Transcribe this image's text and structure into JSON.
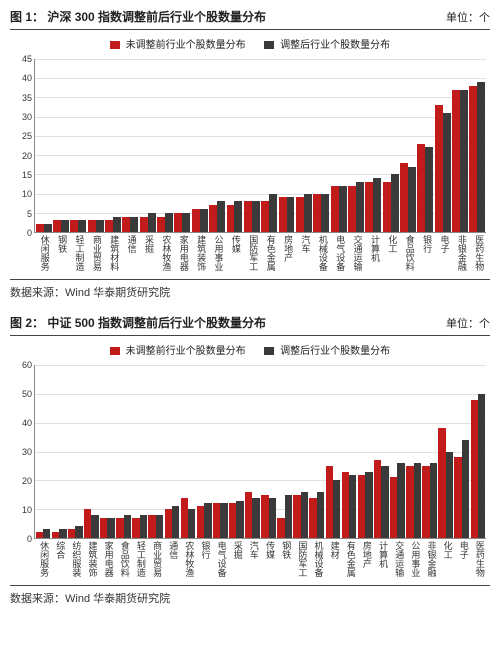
{
  "colors": {
    "series_before": "#c11b1b",
    "series_after": "#3a3a3a",
    "grid": "#e0e0e0",
    "axis": "#888888",
    "text": "#222222",
    "background": "#ffffff"
  },
  "legend_labels": {
    "before": "未调整前行业个股数量分布",
    "after": "调整后行业个股数量分布"
  },
  "figures": [
    {
      "id": "fig1",
      "title_prefix": "图 1：",
      "title": "沪深 300 指数调整前后行业个股数量分布",
      "unit": "单位：个",
      "source": "数据来源：Wind  华泰期货研究院",
      "ylim": [
        0,
        45
      ],
      "ytick_step": 5,
      "type": "bar",
      "categories": [
        "休闲服务",
        "钢铁",
        "轻工制造",
        "商业贸易",
        "建筑材料",
        "通信",
        "采掘",
        "农林牧渔",
        "家用电器",
        "建筑装饰",
        "公用事业",
        "传媒",
        "国防军工",
        "有色金属",
        "房地产",
        "汽车",
        "机械设备",
        "电气设备",
        "交通运输",
        "计算机",
        "化工",
        "食品饮料",
        "银行",
        "电子",
        "非银金融",
        "医药生物"
      ],
      "values_before": [
        2,
        3,
        3,
        3,
        3,
        4,
        4,
        4,
        5,
        6,
        7,
        7,
        8,
        8,
        9,
        9,
        10,
        12,
        12,
        13,
        13,
        18,
        23,
        33,
        37,
        38
      ],
      "values_after": [
        2,
        3,
        3,
        3,
        4,
        4,
        5,
        5,
        5,
        6,
        8,
        8,
        8,
        10,
        9,
        10,
        10,
        12,
        13,
        14,
        15,
        17,
        22,
        31,
        37,
        39
      ]
    },
    {
      "id": "fig2",
      "title_prefix": "图 2：",
      "title": "中证 500 指数调整前后行业个股数量分布",
      "unit": "单位：个",
      "source": "数据来源：Wind  华泰期货研究院",
      "ylim": [
        0,
        60
      ],
      "ytick_step": 10,
      "type": "bar",
      "categories": [
        "休闲服务",
        "综合",
        "纺织服装",
        "建筑装饰",
        "家用电器",
        "食品饮料",
        "轻工制造",
        "商业贸易",
        "通信",
        "农林牧渔",
        "银行",
        "电气设备",
        "采掘",
        "汽车",
        "传媒",
        "钢铁",
        "国防军工",
        "机械设备",
        "建材",
        "有色金属",
        "房地产",
        "计算机",
        "交通运输",
        "公用事业",
        "非银金融",
        "化工",
        "电子",
        "医药生物"
      ],
      "values_before": [
        2,
        2,
        3,
        10,
        7,
        7,
        7,
        8,
        10,
        14,
        11,
        12,
        12,
        16,
        15,
        7,
        15,
        14,
        25,
        23,
        22,
        27,
        21,
        25,
        25,
        38,
        28,
        48
      ],
      "values_after": [
        3,
        3,
        4,
        8,
        7,
        8,
        8,
        8,
        11,
        10,
        12,
        12,
        13,
        14,
        14,
        15,
        16,
        16,
        20,
        22,
        23,
        25,
        26,
        26,
        26,
        30,
        34,
        50
      ]
    }
  ]
}
